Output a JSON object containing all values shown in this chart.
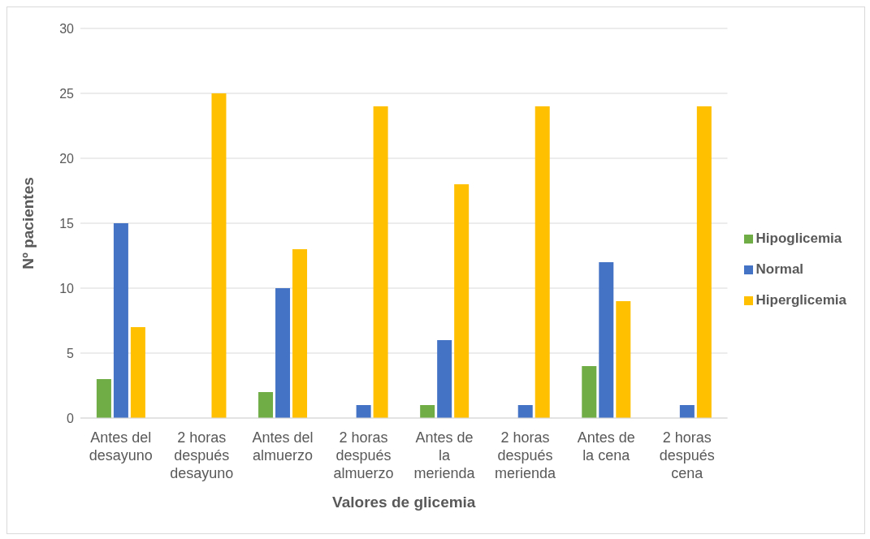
{
  "chart_data": {
    "type": "bar",
    "xlabel": "Valores de glicemia",
    "ylabel": "Nº pacientes",
    "categories": [
      "Antes del desayuno",
      "2 horas después desayuno",
      "Antes del almuerzo",
      "2 horas después almuerzo",
      "Antes de la merienda",
      "2 horas después merienda",
      "Antes de la cena",
      "2 horas después cena"
    ],
    "series": [
      {
        "name": "Hipoglicemia",
        "color": "#70ad47",
        "values": [
          3,
          0,
          2,
          0,
          1,
          0,
          4,
          0
        ]
      },
      {
        "name": "Normal",
        "color": "#4472c4",
        "values": [
          15,
          0,
          10,
          1,
          6,
          1,
          12,
          1
        ]
      },
      {
        "name": "Hiperglicemia",
        "color": "#ffc000",
        "values": [
          7,
          25,
          13,
          24,
          18,
          24,
          9,
          24
        ]
      }
    ],
    "ylim": [
      0,
      30
    ],
    "yticks": [
      0,
      5,
      10,
      15,
      20,
      25,
      30
    ],
    "grid": "y",
    "legend": "right"
  }
}
